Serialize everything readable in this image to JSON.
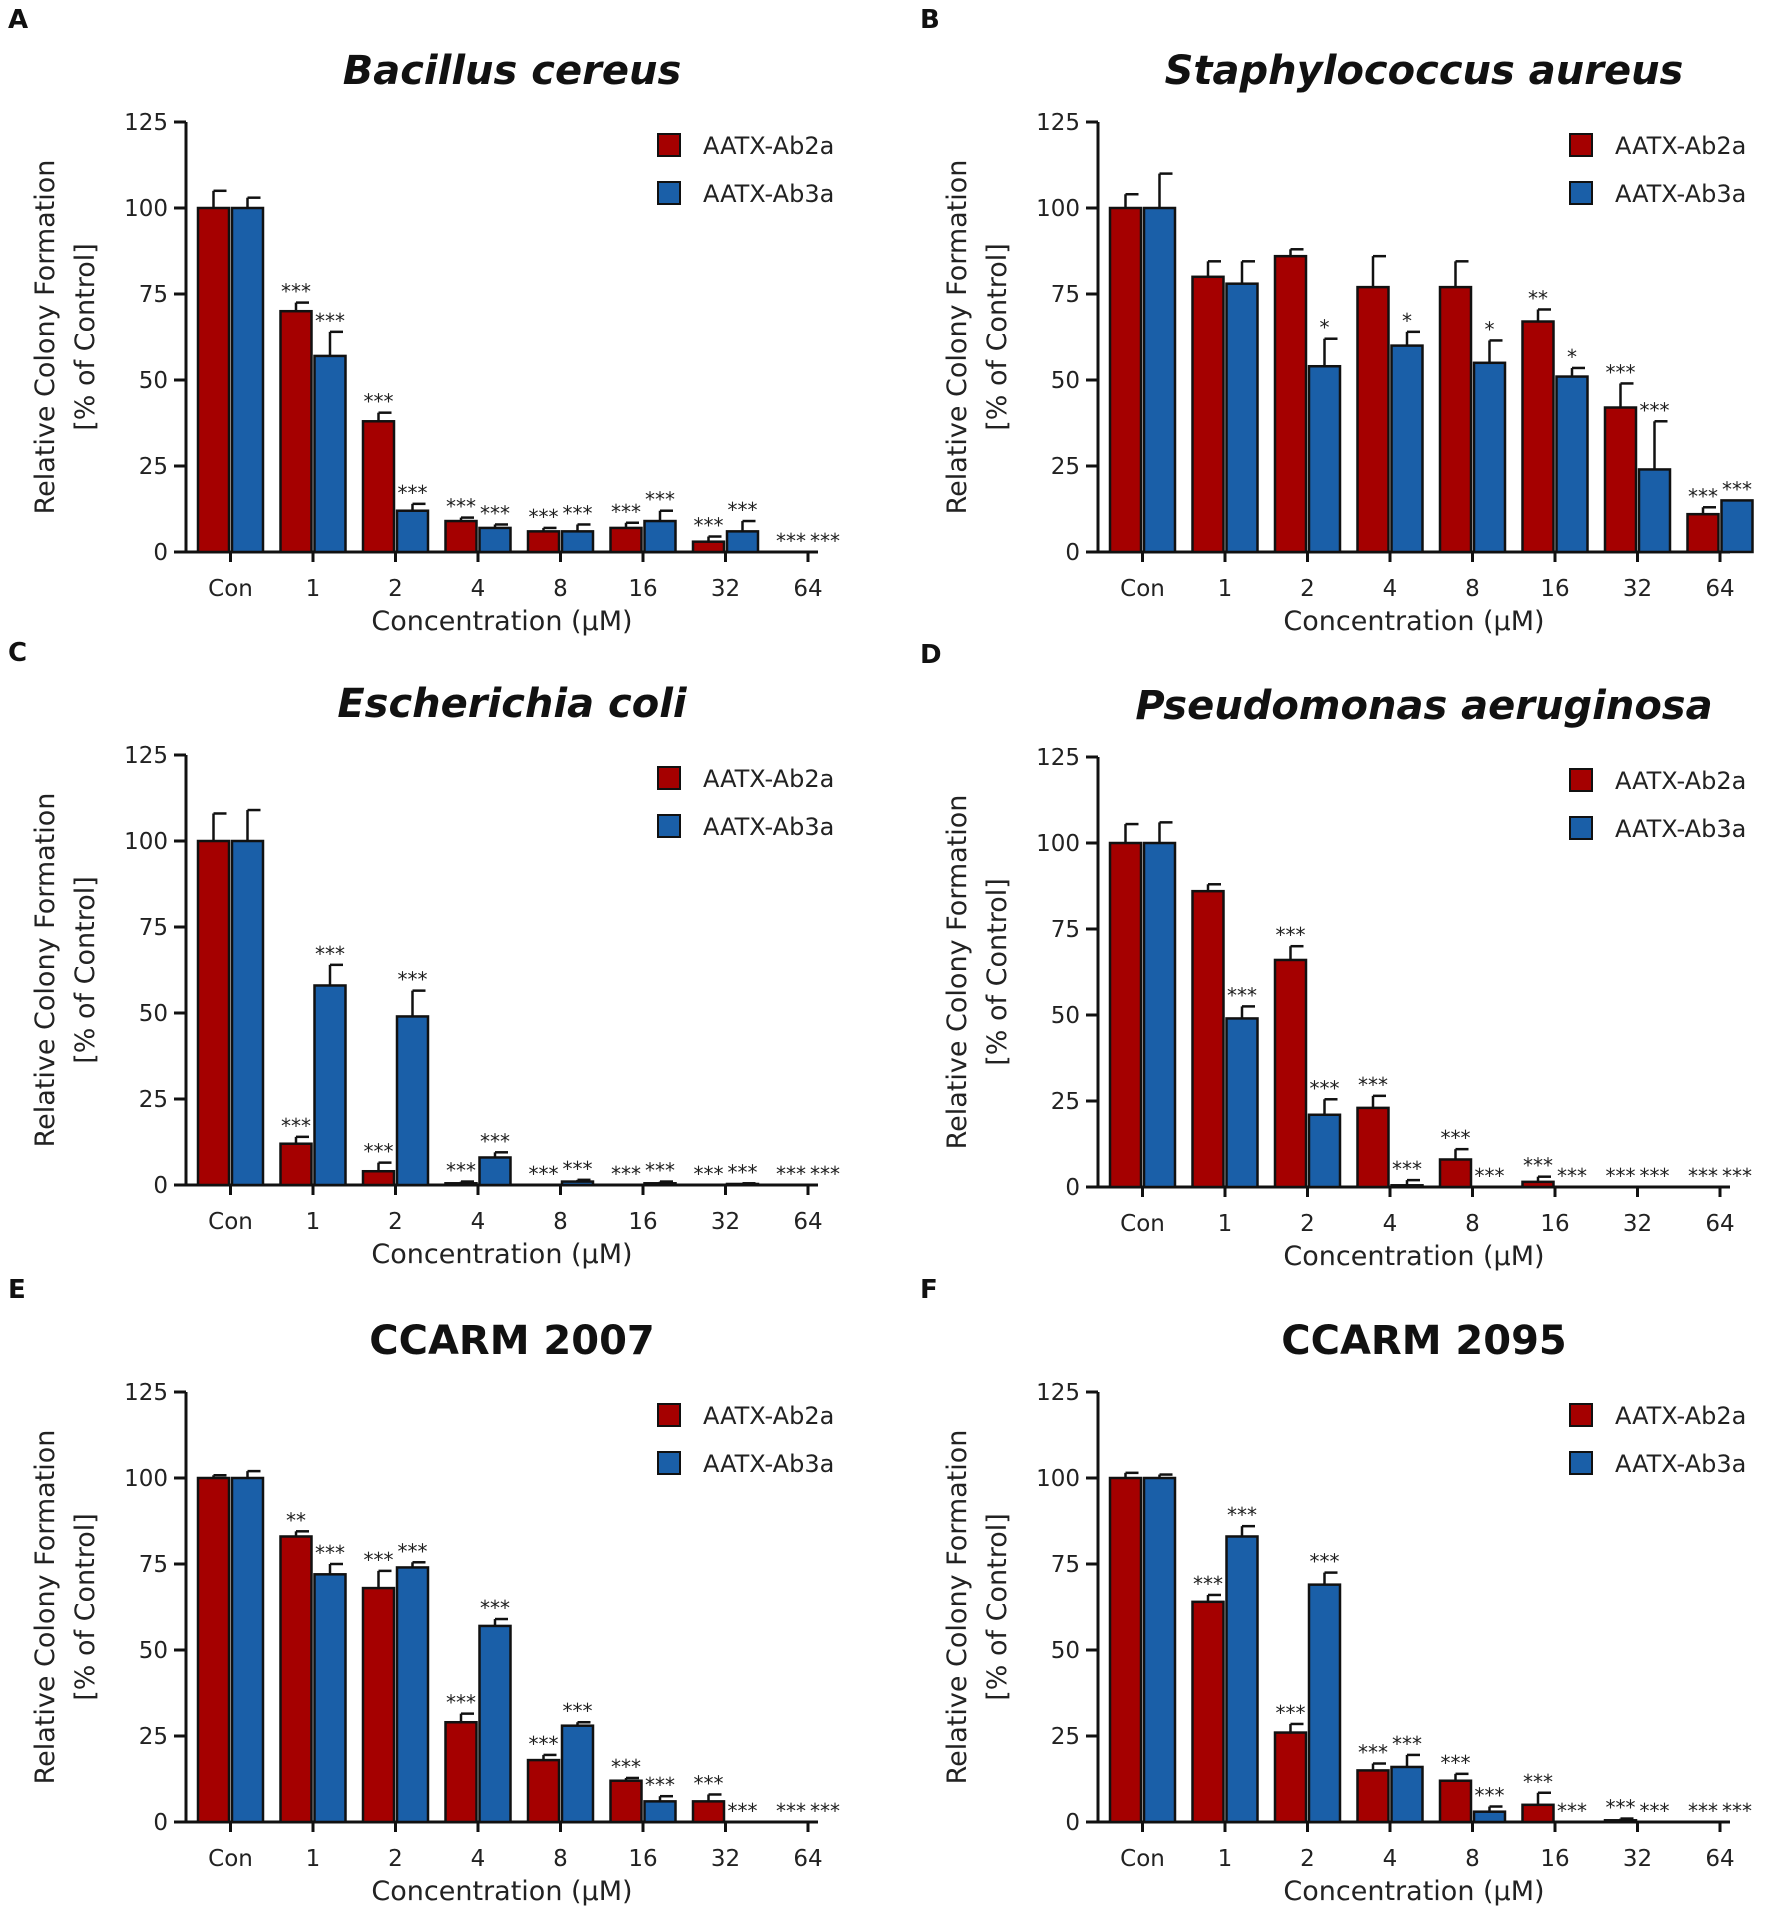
{
  "figure": {
    "colors": {
      "ab2a": "#A50000",
      "ab3a": "#1A5FA8",
      "axis": "#111111"
    }
  },
  "chart_data": [
    {
      "panel": "A",
      "type": "bar",
      "title": "Bacillus cereus",
      "title_italic": true,
      "xlabel": "Concentration (μM)",
      "ylabel": [
        "Relative Colony Formation",
        "[% of Control]"
      ],
      "ylim": [
        0,
        125
      ],
      "yticks": [
        "0",
        "25",
        "50",
        "75",
        "100",
        "125"
      ],
      "categories": [
        "Con",
        "1",
        "2",
        "4",
        "8",
        "16",
        "32",
        "64"
      ],
      "legend_position": "top-right",
      "series": [
        {
          "name": "AATX-Ab2a",
          "values": [
            100,
            70,
            38,
            9,
            6,
            7,
            3,
            0
          ],
          "errors": [
            5,
            2.5,
            2.5,
            1,
            1,
            1.5,
            1.5,
            0
          ],
          "sig": [
            "",
            "***",
            "***",
            "***",
            "***",
            "***",
            "***",
            "***"
          ]
        },
        {
          "name": "AATX-Ab3a",
          "values": [
            100,
            57,
            12,
            7,
            6,
            9,
            6,
            0
          ],
          "errors": [
            3,
            7,
            2,
            1,
            2,
            3,
            3,
            0
          ],
          "sig": [
            "",
            "***",
            "***",
            "***",
            "***",
            "***",
            "***",
            "***"
          ]
        }
      ]
    },
    {
      "panel": "B",
      "type": "bar",
      "title": "Staphylococcus aureus",
      "title_italic": true,
      "xlabel": "Concentration (μM)",
      "ylabel": [
        "Relative Colony Formation",
        "[% of Control]"
      ],
      "ylim": [
        0,
        125
      ],
      "yticks": [
        "0",
        "25",
        "50",
        "75",
        "100",
        "125"
      ],
      "categories": [
        "Con",
        "1",
        "2",
        "4",
        "8",
        "16",
        "32",
        "64"
      ],
      "legend_position": "top-right",
      "series": [
        {
          "name": "AATX-Ab2a",
          "values": [
            100,
            80,
            86,
            77,
            77,
            67,
            42,
            11
          ],
          "errors": [
            4,
            4.5,
            2,
            9,
            7.5,
            3.5,
            7,
            2
          ],
          "sig": [
            "",
            "",
            "",
            "",
            "",
            "**",
            "***",
            "***"
          ]
        },
        {
          "name": "AATX-Ab3a",
          "values": [
            100,
            78,
            54,
            60,
            55,
            51,
            24,
            15
          ],
          "errors": [
            10,
            6.5,
            8,
            4,
            6.5,
            2.5,
            14,
            0
          ],
          "sig": [
            "",
            "",
            "*",
            "*",
            "*",
            "*",
            "***",
            "***"
          ]
        }
      ]
    },
    {
      "panel": "C",
      "type": "bar",
      "title": "Escherichia coli",
      "title_italic": true,
      "xlabel": "Concentration (μM)",
      "ylabel": [
        "Relative Colony Formation",
        "[% of Control]"
      ],
      "ylim": [
        0,
        125
      ],
      "yticks": [
        "0",
        "25",
        "50",
        "75",
        "100",
        "125"
      ],
      "categories": [
        "Con",
        "1",
        "2",
        "4",
        "8",
        "16",
        "32",
        "64"
      ],
      "legend_position": "top-right",
      "series": [
        {
          "name": "AATX-Ab2a",
          "values": [
            100,
            12,
            4,
            0.5,
            0,
            0,
            0,
            0
          ],
          "errors": [
            8,
            2,
            2.5,
            0.5,
            0,
            0,
            0,
            0
          ],
          "sig": [
            "",
            "***",
            "***",
            "***",
            "***",
            "***",
            "***",
            "***"
          ]
        },
        {
          "name": "AATX-Ab3a",
          "values": [
            100,
            58,
            49,
            8,
            1,
            0.5,
            0.3,
            0
          ],
          "errors": [
            9,
            6,
            7.5,
            1.5,
            0.5,
            0.5,
            0.2,
            0
          ],
          "sig": [
            "",
            "***",
            "***",
            "***",
            "***",
            "***",
            "***",
            "***"
          ]
        }
      ]
    },
    {
      "panel": "D",
      "type": "bar",
      "title": "Pseudomonas aeruginosa",
      "title_italic": true,
      "xlabel": "Concentration (μM)",
      "ylabel": [
        "Relative Colony Formation",
        "[% of Control]"
      ],
      "ylim": [
        0,
        125
      ],
      "yticks": [
        "0",
        "25",
        "50",
        "75",
        "100",
        "125"
      ],
      "categories": [
        "Con",
        "1",
        "2",
        "4",
        "8",
        "16",
        "32",
        "64"
      ],
      "legend_position": "top-right",
      "series": [
        {
          "name": "AATX-Ab2a",
          "values": [
            100,
            86,
            66,
            23,
            8,
            1.5,
            0,
            0
          ],
          "errors": [
            5.5,
            2,
            4,
            3.5,
            3,
            1.5,
            0,
            0
          ],
          "sig": [
            "",
            "",
            "***",
            "***",
            "***",
            "***",
            "***",
            "***"
          ]
        },
        {
          "name": "AATX-Ab3a",
          "values": [
            100,
            49,
            21,
            0.5,
            0,
            0,
            0,
            0
          ],
          "errors": [
            6,
            3.5,
            4.5,
            1.5,
            0,
            0,
            0,
            0
          ],
          "sig": [
            "",
            "***",
            "***",
            "***",
            "***",
            "***",
            "***",
            "***"
          ]
        }
      ]
    },
    {
      "panel": "E",
      "type": "bar",
      "title": "CCARM 2007",
      "title_italic": false,
      "xlabel": "Concentration (μM)",
      "ylabel": [
        "Relative Colony Formation",
        "[% of Control]"
      ],
      "ylim": [
        0,
        125
      ],
      "yticks": [
        "0",
        "25",
        "50",
        "75",
        "100",
        "125"
      ],
      "categories": [
        "Con",
        "1",
        "2",
        "4",
        "8",
        "16",
        "32",
        "64"
      ],
      "legend_position": "top-right",
      "series": [
        {
          "name": "AATX-Ab2a",
          "values": [
            100,
            83,
            68,
            29,
            18,
            12,
            6,
            0
          ],
          "errors": [
            0.8,
            1.5,
            5,
            2.5,
            1.5,
            0.8,
            2,
            0
          ],
          "sig": [
            "",
            "**",
            "***",
            "***",
            "***",
            "***",
            "***",
            "***"
          ]
        },
        {
          "name": "AATX-Ab3a",
          "values": [
            100,
            72,
            74,
            57,
            28,
            6,
            0,
            0
          ],
          "errors": [
            2,
            3,
            1.5,
            2,
            1,
            1.5,
            0,
            0
          ],
          "sig": [
            "",
            "***",
            "***",
            "***",
            "***",
            "***",
            "***",
            "***"
          ]
        }
      ]
    },
    {
      "panel": "F",
      "type": "bar",
      "title": "CCARM 2095",
      "title_italic": false,
      "xlabel": "Concentration (μM)",
      "ylabel": [
        "Relative Colony Formation",
        "[% of Control]"
      ],
      "ylim": [
        0,
        125
      ],
      "yticks": [
        "0",
        "25",
        "50",
        "75",
        "100",
        "125"
      ],
      "categories": [
        "Con",
        "1",
        "2",
        "4",
        "8",
        "16",
        "32",
        "64"
      ],
      "legend_position": "top-right",
      "series": [
        {
          "name": "AATX-Ab2a",
          "values": [
            100,
            64,
            26,
            15,
            12,
            5,
            0.5,
            0
          ],
          "errors": [
            1.5,
            2,
            2.5,
            2,
            2,
            3.5,
            0.5,
            0
          ],
          "sig": [
            "",
            "***",
            "***",
            "***",
            "***",
            "***",
            "***",
            "***"
          ]
        },
        {
          "name": "AATX-Ab3a",
          "values": [
            100,
            83,
            69,
            16,
            3,
            0,
            0,
            0
          ],
          "errors": [
            1,
            3,
            3.5,
            3.5,
            1.5,
            0,
            0,
            0
          ],
          "sig": [
            "",
            "***",
            "***",
            "***",
            "***",
            "***",
            "***",
            "***"
          ]
        }
      ]
    }
  ]
}
